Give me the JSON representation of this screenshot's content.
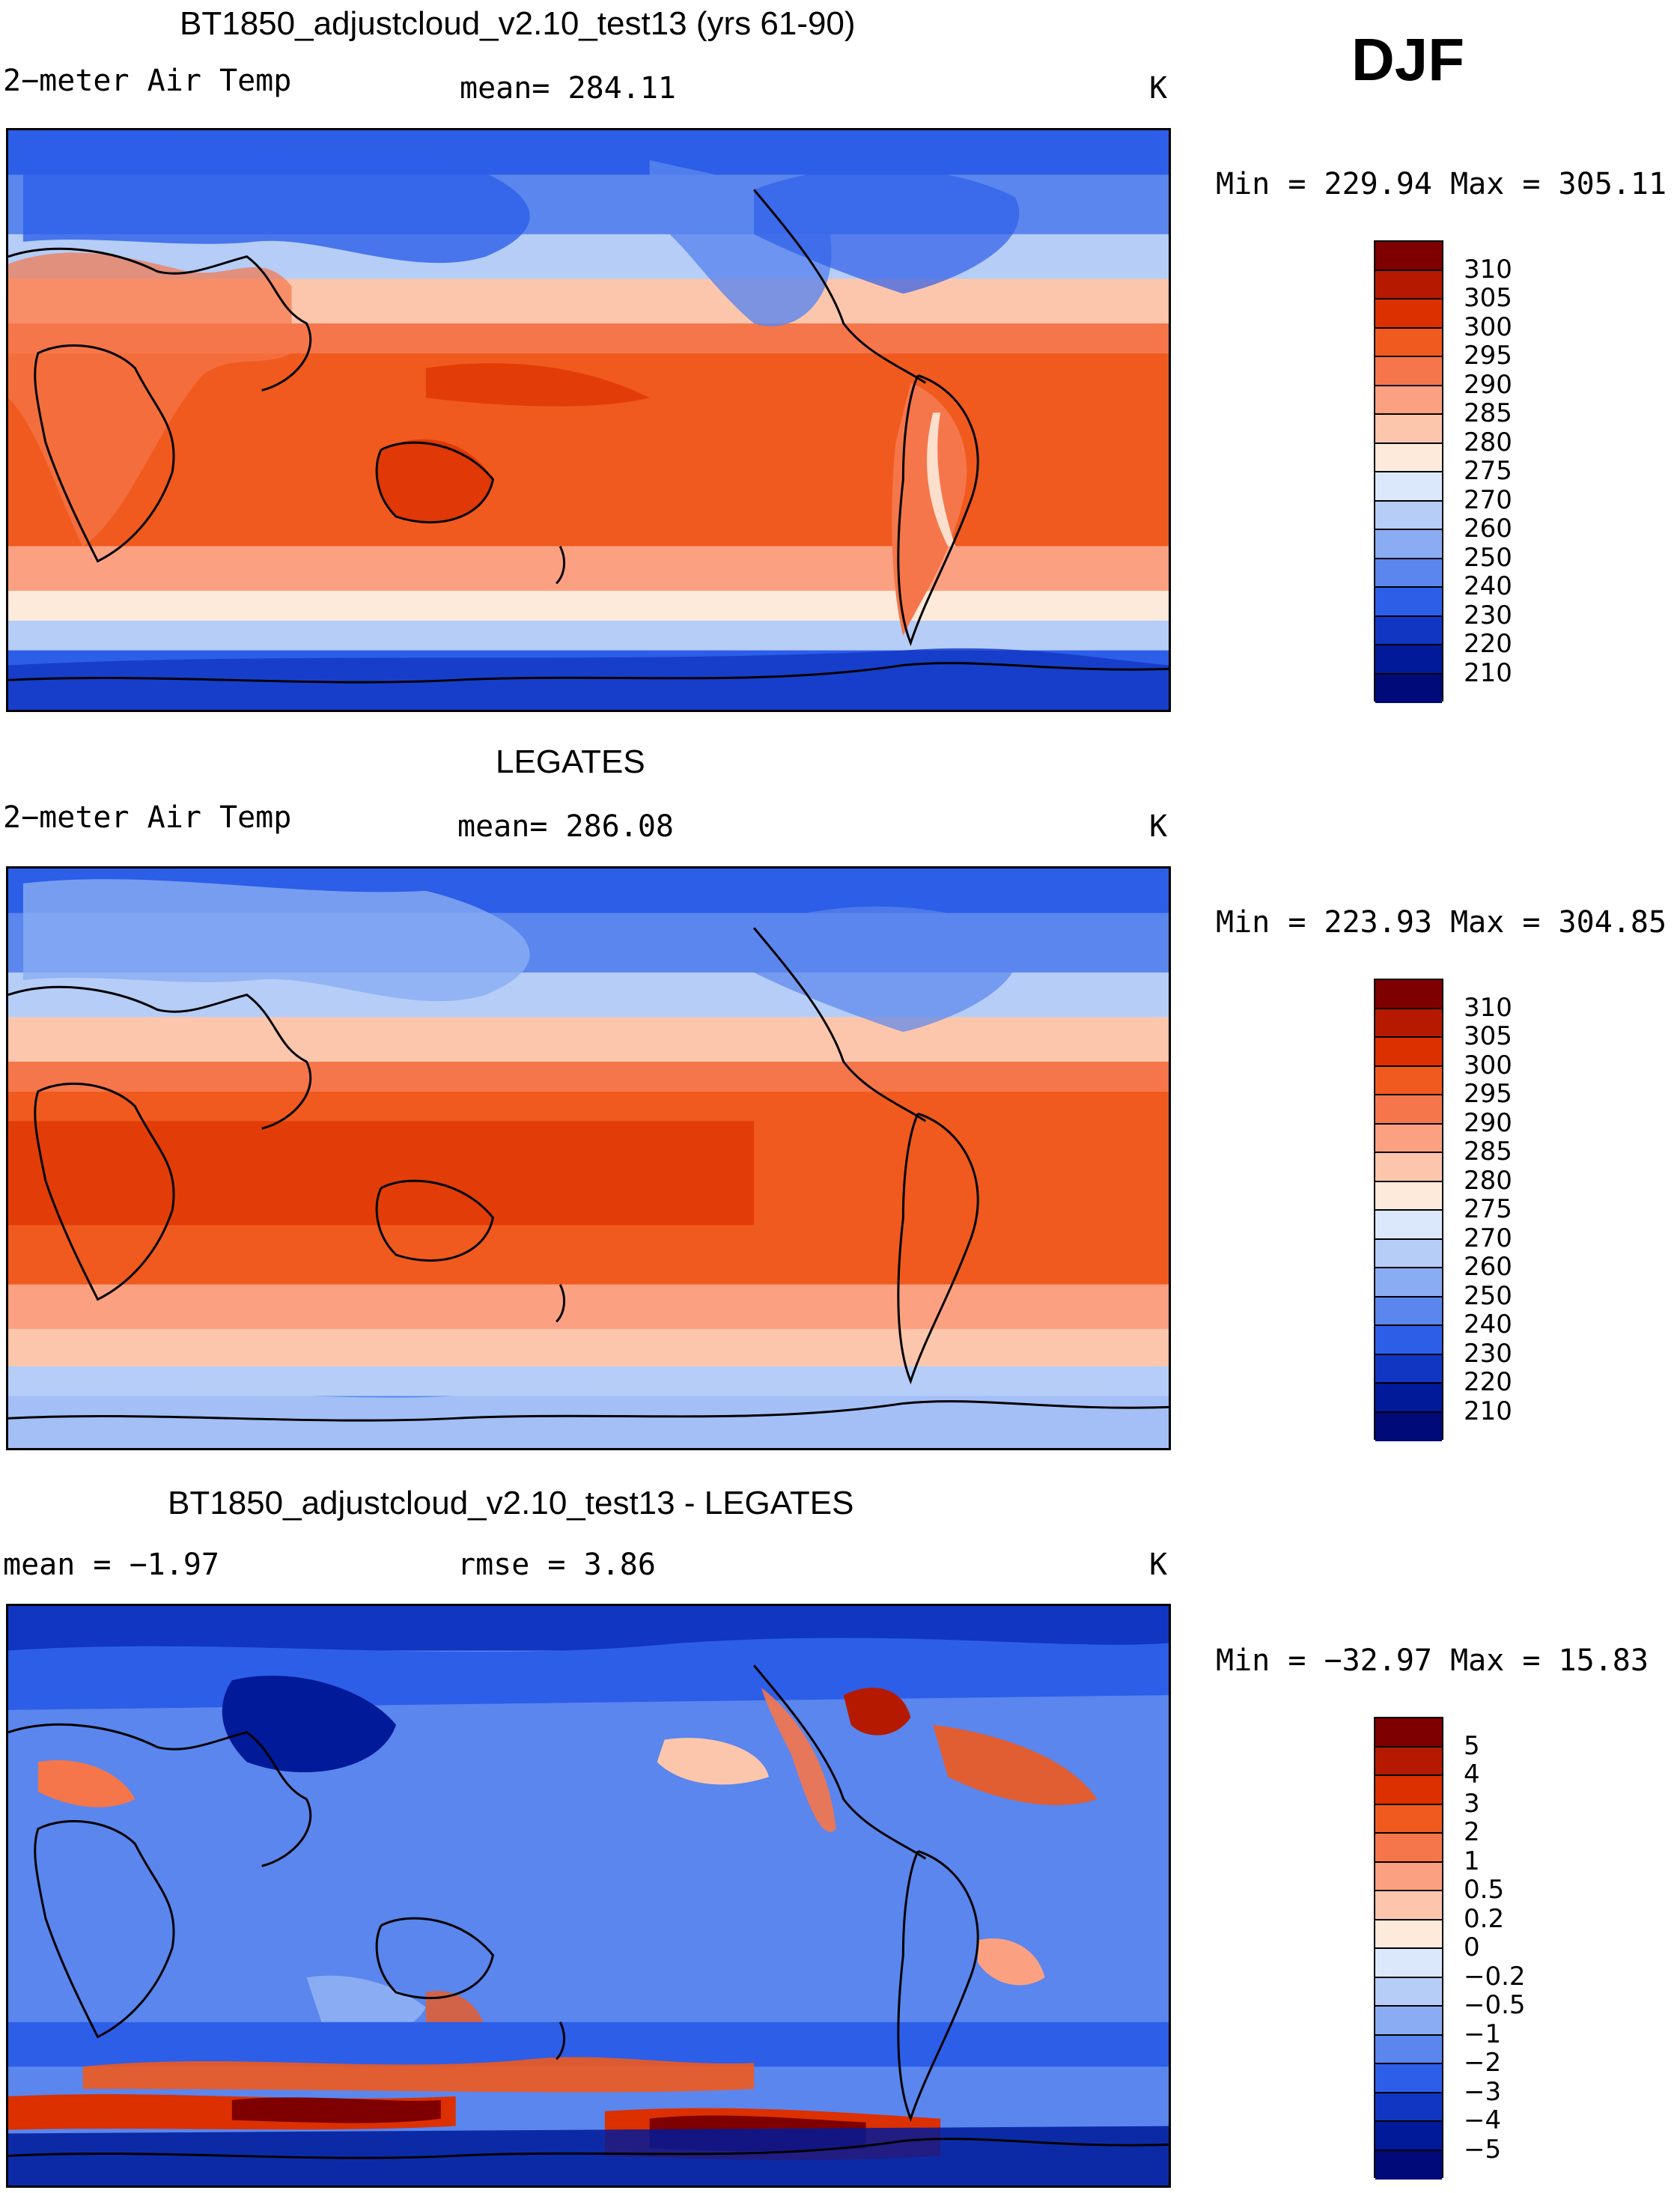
{
  "season": "DJF",
  "panels": [
    {
      "id": "model",
      "title": "BT1850_adjustcloud_v2.10_test13 (yrs 61-90)",
      "left_label": "2−meter Air Temp",
      "center_label": "mean= 284.11",
      "units": "K",
      "minmax": "Min = 229.94 Max = 305.11"
    },
    {
      "id": "obs",
      "title": "LEGATES",
      "left_label": "2−meter Air Temp",
      "center_label": "mean= 286.08",
      "units": "K",
      "minmax": "Min = 223.93 Max = 304.85"
    },
    {
      "id": "diff",
      "title": "BT1850_adjustcloud_v2.10_test13 - LEGATES",
      "left_label": "mean =  −1.97",
      "center_label": "rmse =   3.86",
      "units": "K",
      "minmax": "Min = −32.97 Max =  15.83"
    }
  ],
  "colorbars": {
    "temperature": {
      "labels": [
        "310",
        "305",
        "300",
        "295",
        "290",
        "285",
        "280",
        "275",
        "270",
        "260",
        "250",
        "240",
        "230",
        "220",
        "210"
      ],
      "colors": [
        "#7f0000",
        "#b51a00",
        "#dc3000",
        "#f05a1e",
        "#f5764a",
        "#fba182",
        "#fcc6ac",
        "#fdeadb",
        "#dbe8fb",
        "#b5cdf7",
        "#8aacf2",
        "#5a86ed",
        "#2d5ee8",
        "#1136c2",
        "#001a99",
        "#000a78"
      ]
    },
    "difference": {
      "labels": [
        "5",
        "4",
        "3",
        "2",
        "1",
        "0.5",
        "0.2",
        "0",
        "−0.2",
        "−0.5",
        "−1",
        "−2",
        "−3",
        "−4",
        "−5"
      ],
      "colors": [
        "#7f0000",
        "#b51a00",
        "#dc3000",
        "#f05a1e",
        "#f5764a",
        "#fba182",
        "#fcc6ac",
        "#fdeadb",
        "#dbe8fb",
        "#b5cdf7",
        "#8aacf2",
        "#5a86ed",
        "#2d5ee8",
        "#1136c2",
        "#001a99",
        "#000a78"
      ]
    }
  }
}
